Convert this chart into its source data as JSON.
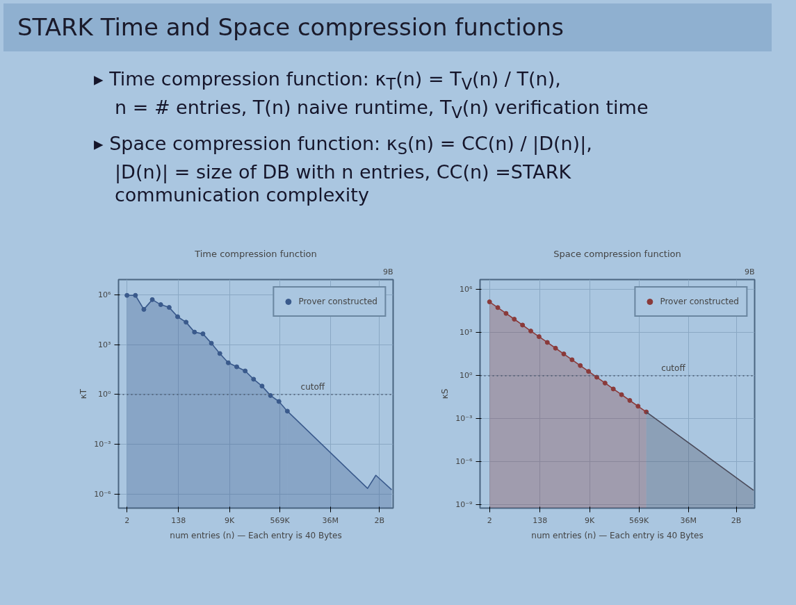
{
  "chart_data": [
    {
      "type": "other",
      "title": "STARK Time and Space compression functions",
      "annotations": [
        "▸ Time compression function: κ$_{T}$(n) = T$_{V}$(n) / T(n),",
        "n = # entries, T(n) naive runtime, T$_{V}$(n) verification time",
        "▸ Space compression function: κ$_{S}$(n) = CC(n) / |D(n)|,",
        "|D(n)| = size of DB with n entries, CC(n) =STARK communication complexity"
      ]
    },
    {
      "type": "area",
      "title": "Time compression function",
      "xlabel": "num entries (n) — Each entry is 40 Bytes",
      "ylabel": "κT",
      "log": "xy",
      "grid": true,
      "legend": "top right",
      "annotations": [
        "9B"
      ],
      "xlim": [
        1,
        6200000000
      ],
      "ylim": [
        1.5e-07,
        8000000
      ],
      "xticks": [
        {
          "value": 2,
          "label": "2"
        },
        {
          "value": 138,
          "label": "138"
        },
        {
          "value": 9000,
          "label": "9K"
        },
        {
          "value": 569000,
          "label": "569K"
        },
        {
          "value": 36000000,
          "label": "36M"
        },
        {
          "value": 2000000000,
          "label": "2B"
        }
      ],
      "yticks": [
        {
          "value": 1000000,
          "label": "10⁶"
        },
        {
          "value": 1000,
          "label": "10³"
        },
        {
          "value": 1,
          "label": "10⁰"
        },
        {
          "value": 0.001,
          "label": "10⁻³"
        },
        {
          "value": 1e-06,
          "label": "10⁻⁶"
        }
      ],
      "ref_lines": [
        {
          "axis": "y",
          "value": 1,
          "label": "cutoff",
          "line_style": "dotted",
          "color": "#4a5a70"
        }
      ],
      "series": [
        {
          "name": "Prover constructed",
          "color": "#3a5a8c",
          "marker": "circle",
          "x": [
            2,
            4,
            8,
            16,
            32,
            64,
            128,
            256,
            512,
            1024,
            2048,
            4096,
            8192,
            16384,
            32768,
            65536,
            131072,
            262144,
            524288,
            1048576
          ],
          "values": [
            900000,
            900000,
            130000,
            500000,
            250000,
            170000,
            47000,
            22000,
            5600,
            4400,
            1200,
            290,
            80,
            46,
            26,
            8.3,
            3.2,
            0.87,
            0.38,
            0.1
          ]
        },
        {
          "color": "#3a5a8c",
          "marker": "none",
          "x": [
            1048576,
            760000000,
            1500000000,
            5500000000
          ],
          "values": [
            0.1,
            2.3e-06,
            1.4e-05,
            1.9e-06
          ]
        }
      ]
    },
    {
      "type": "area",
      "title": "Space compression function",
      "xlabel": "num entries (n) — Each entry is 40 Bytes",
      "ylabel": "κS",
      "log": "xy",
      "grid": true,
      "legend": "top right",
      "annotations": [
        "9B"
      ],
      "xlim": [
        0.9,
        9400000000
      ],
      "ylim": [
        6e-10,
        5000000
      ],
      "xticks": [
        {
          "value": 2,
          "label": "2"
        },
        {
          "value": 138,
          "label": "138"
        },
        {
          "value": 9000,
          "label": "9K"
        },
        {
          "value": 569000,
          "label": "569K"
        },
        {
          "value": 36000000,
          "label": "36M"
        },
        {
          "value": 2000000000,
          "label": "2B"
        }
      ],
      "yticks": [
        {
          "value": 1000000,
          "label": "10⁶"
        },
        {
          "value": 1000,
          "label": "10³"
        },
        {
          "value": 1,
          "label": "10⁰"
        },
        {
          "value": 0.001,
          "label": "10⁻³"
        },
        {
          "value": 1e-06,
          "label": "10⁻⁶"
        },
        {
          "value": 1e-09,
          "label": "10⁻⁹"
        }
      ],
      "ref_lines": [
        {
          "axis": "y",
          "value": 1,
          "label": "cutoff",
          "line_style": "dotted",
          "color": "#4a5a70"
        }
      ],
      "series": [
        {
          "name": "Prover constructed",
          "color": "#8a3a3a",
          "marker": "circle",
          "x": [
            2,
            4,
            8,
            16,
            32,
            64,
            128,
            256,
            512,
            1024,
            2048,
            4096,
            8192,
            16384,
            32768,
            65536,
            131072,
            262144,
            524288,
            1048576
          ],
          "values": [
            140000,
            56000,
            22000,
            8700,
            3400,
            1300,
            530,
            210,
            83,
            33,
            13,
            5.1,
            2.0,
            0.79,
            0.31,
            0.12,
            0.048,
            0.019,
            0.0075,
            0.003
          ]
        },
        {
          "color": "#4a4a5a",
          "marker": "none",
          "x": [
            1048576,
            8600000000
          ],
          "values": [
            0.003,
            1.05e-08
          ]
        }
      ]
    }
  ]
}
